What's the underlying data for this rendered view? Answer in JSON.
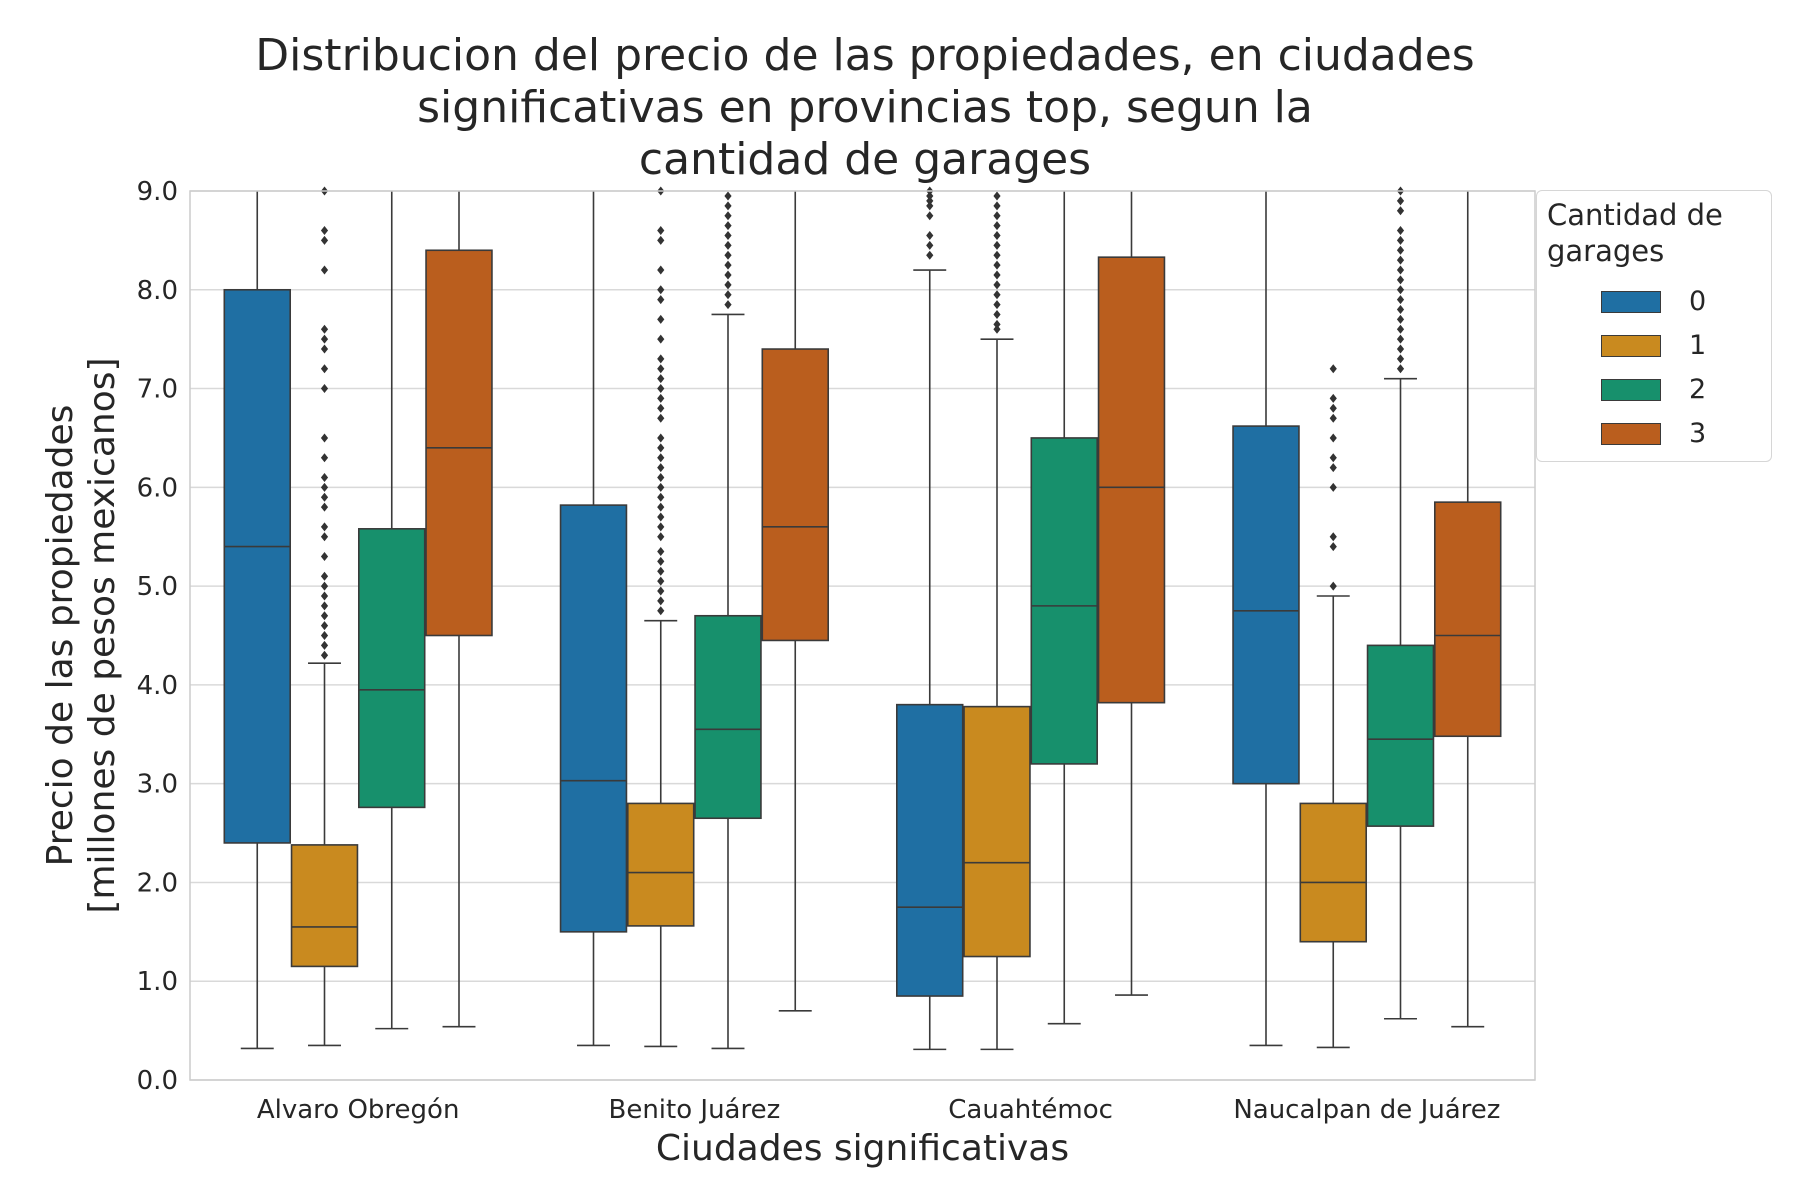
{
  "chart_data": {
    "type": "box",
    "title_lines": [
      "Distribucion del precio de las propiedades, en ciudades",
      "significativas en provincias top, segun la",
      "cantidad de garages"
    ],
    "xlabel": "Ciudades significativas",
    "ylabel_lines": [
      "Precio de las propiedades",
      "[millones de pesos mexicanos]"
    ],
    "ylim": [
      0,
      9
    ],
    "yticks": [
      "0.0",
      "1.0",
      "2.0",
      "3.0",
      "4.0",
      "5.0",
      "6.0",
      "7.0",
      "8.0",
      "9.0"
    ],
    "grid": true,
    "legend_position": "outside top-right",
    "legend": {
      "title_lines": [
        "Cantidad de",
        "garages"
      ],
      "entries": [
        "0",
        "1",
        "2",
        "3"
      ]
    },
    "colors": [
      "#1f6fa3",
      "#c98a1f",
      "#17906c",
      "#ba5e1e"
    ],
    "categories": [
      "Alvaro Obregón",
      "Benito Juárez",
      "Cauahtémoc",
      "Naucalpan de Juárez"
    ],
    "series": [
      {
        "name": "0",
        "boxes": [
          {
            "whislo": 0.32,
            "q1": 2.4,
            "med": 5.4,
            "q3": 8.0,
            "whishi": 9.0,
            "fliers": []
          },
          {
            "whislo": 0.35,
            "q1": 1.5,
            "med": 3.03,
            "q3": 5.82,
            "whishi": 9.0,
            "fliers": []
          },
          {
            "whislo": 0.31,
            "q1": 0.85,
            "med": 1.75,
            "q3": 3.8,
            "whishi": 8.2,
            "fliers": [
              8.35,
              8.45,
              8.55,
              8.75,
              8.85,
              8.9,
              8.95,
              9.0
            ]
          },
          {
            "whislo": 0.35,
            "q1": 3.0,
            "med": 4.75,
            "q3": 6.62,
            "whishi": 9.0,
            "fliers": []
          }
        ]
      },
      {
        "name": "1",
        "boxes": [
          {
            "whislo": 0.35,
            "q1": 1.15,
            "med": 1.55,
            "q3": 2.38,
            "whishi": 4.22,
            "fliers": [
              4.3,
              4.4,
              4.5,
              4.6,
              4.7,
              4.8,
              4.9,
              5.0,
              5.1,
              5.3,
              5.5,
              5.6,
              5.8,
              5.9,
              6.0,
              6.1,
              6.3,
              6.5,
              7.0,
              7.2,
              7.4,
              7.5,
              7.6,
              8.2,
              8.5,
              8.6,
              9.0
            ]
          },
          {
            "whislo": 0.34,
            "q1": 1.56,
            "med": 2.1,
            "q3": 2.8,
            "whishi": 4.65,
            "fliers": [
              4.75,
              4.85,
              4.95,
              5.05,
              5.15,
              5.25,
              5.35,
              5.5,
              5.6,
              5.7,
              5.8,
              5.9,
              6.0,
              6.1,
              6.2,
              6.3,
              6.4,
              6.5,
              6.7,
              6.8,
              6.9,
              7.0,
              7.1,
              7.2,
              7.3,
              7.5,
              7.7,
              7.9,
              8.0,
              8.2,
              8.5,
              8.6,
              9.0
            ]
          },
          {
            "whislo": 0.31,
            "q1": 1.25,
            "med": 2.2,
            "q3": 3.78,
            "whishi": 7.5,
            "fliers": [
              7.6,
              7.65,
              7.75,
              7.85,
              7.95,
              8.05,
              8.15,
              8.25,
              8.35,
              8.45,
              8.55,
              8.65,
              8.75,
              8.85,
              8.95
            ]
          },
          {
            "whislo": 0.33,
            "q1": 1.4,
            "med": 2.0,
            "q3": 2.8,
            "whishi": 4.9,
            "fliers": [
              5.0,
              5.4,
              5.5,
              6.0,
              6.2,
              6.3,
              6.5,
              6.7,
              6.8,
              6.9,
              7.2
            ]
          }
        ]
      },
      {
        "name": "2",
        "boxes": [
          {
            "whislo": 0.52,
            "q1": 2.76,
            "med": 3.95,
            "q3": 5.58,
            "whishi": 9.0,
            "fliers": []
          },
          {
            "whislo": 0.32,
            "q1": 2.65,
            "med": 3.55,
            "q3": 4.7,
            "whishi": 7.75,
            "fliers": [
              7.85,
              7.95,
              8.05,
              8.15,
              8.25,
              8.35,
              8.45,
              8.55,
              8.65,
              8.75,
              8.85,
              8.95
            ]
          },
          {
            "whislo": 0.57,
            "q1": 3.2,
            "med": 4.8,
            "q3": 6.5,
            "whishi": 9.0,
            "fliers": []
          },
          {
            "whislo": 0.62,
            "q1": 2.57,
            "med": 3.45,
            "q3": 4.4,
            "whishi": 7.1,
            "fliers": [
              7.2,
              7.3,
              7.4,
              7.5,
              7.6,
              7.7,
              7.8,
              7.9,
              8.0,
              8.1,
              8.2,
              8.3,
              8.4,
              8.5,
              8.6,
              8.8,
              8.9,
              9.0
            ]
          }
        ]
      },
      {
        "name": "3",
        "boxes": [
          {
            "whislo": 0.54,
            "q1": 4.5,
            "med": 6.4,
            "q3": 8.4,
            "whishi": 9.0,
            "fliers": []
          },
          {
            "whislo": 0.7,
            "q1": 4.45,
            "med": 5.6,
            "q3": 7.4,
            "whishi": 9.0,
            "fliers": []
          },
          {
            "whislo": 0.86,
            "q1": 3.82,
            "med": 6.0,
            "q3": 8.33,
            "whishi": 9.0,
            "fliers": []
          },
          {
            "whislo": 0.54,
            "q1": 3.48,
            "med": 4.5,
            "q3": 5.85,
            "whishi": 9.0,
            "fliers": []
          }
        ]
      }
    ]
  }
}
